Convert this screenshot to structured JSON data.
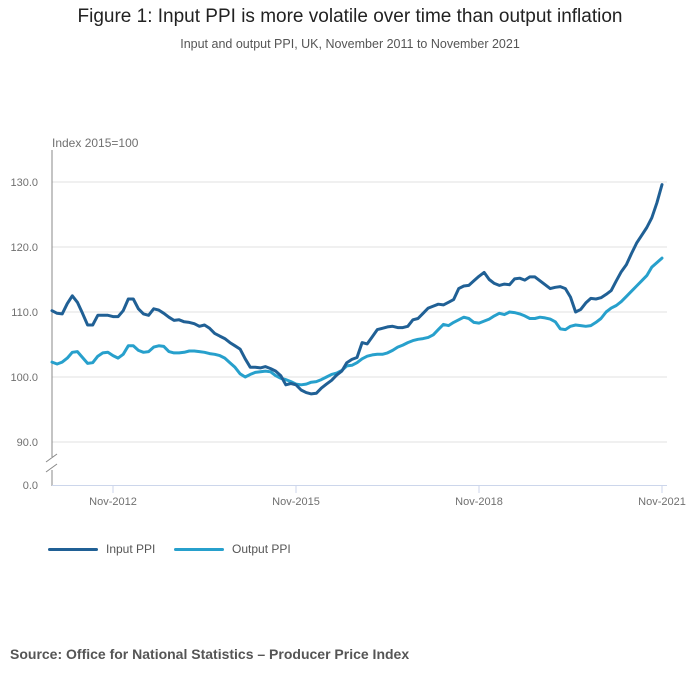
{
  "title": "Figure 1: Input PPI is more volatile over time than output inflation",
  "subtitle": "Input and output PPI, UK, November 2011 to November 2021",
  "source": "Source: Office for National Statistics – Producer Price Index",
  "chart_data": {
    "type": "line",
    "title": "Figure 1: Input PPI is more volatile over time than output inflation",
    "ylabel": "Index 2015=100",
    "xlabel": "",
    "x_start": "Nov-2011",
    "x_end": "Nov-2021",
    "x_frequency": "monthly",
    "x_ticks": [
      "Nov-2012",
      "Nov-2015",
      "Nov-2018",
      "Nov-2021"
    ],
    "y_ticks": [
      "0.0",
      "90.0",
      "100.0",
      "110.0",
      "120.0",
      "130.0"
    ],
    "ylim": [
      85,
      135
    ],
    "axis_break": "between 0.0 and 90.0",
    "grid": true,
    "legend": "bottom-left",
    "series": [
      {
        "name": "Input PPI",
        "color": "#206095",
        "values": [
          110.2,
          109.8,
          109.7,
          111.3,
          112.5,
          111.5,
          109.8,
          108.0,
          108.0,
          109.5,
          109.5,
          109.5,
          109.3,
          109.3,
          110.2,
          112.0,
          112.0,
          110.5,
          109.7,
          109.5,
          110.5,
          110.3,
          109.8,
          109.2,
          108.7,
          108.8,
          108.5,
          108.4,
          108.2,
          107.8,
          108.0,
          107.5,
          106.7,
          106.3,
          105.9,
          105.3,
          104.8,
          104.3,
          102.8,
          101.5,
          101.5,
          101.4,
          101.6,
          101.3,
          100.9,
          100.2,
          98.8,
          99.0,
          98.8,
          98.0,
          97.6,
          97.4,
          97.5,
          98.3,
          98.9,
          99.5,
          100.3,
          100.9,
          102.2,
          102.7,
          103.0,
          105.3,
          105.1,
          106.2,
          107.3,
          107.5,
          107.7,
          107.8,
          107.6,
          107.6,
          107.8,
          108.8,
          109.0,
          109.8,
          110.6,
          110.9,
          111.2,
          111.1,
          111.5,
          111.9,
          113.6,
          114.0,
          114.1,
          114.8,
          115.5,
          116.1,
          115.0,
          114.4,
          114.1,
          114.3,
          114.2,
          115.1,
          115.2,
          114.9,
          115.4,
          115.4,
          114.8,
          114.2,
          113.6,
          113.8,
          113.9,
          113.6,
          112.3,
          110.0,
          110.4,
          111.4,
          112.1,
          112.0,
          112.2,
          112.7,
          113.3,
          114.8,
          116.2,
          117.3,
          119.0,
          120.6,
          121.8,
          123.0,
          124.5,
          126.8,
          129.6
        ]
      },
      {
        "name": "Output PPI",
        "color": "#27a0cc",
        "values": [
          102.3,
          102.0,
          102.3,
          102.9,
          103.8,
          103.9,
          103.0,
          102.1,
          102.2,
          103.2,
          103.7,
          103.8,
          103.3,
          102.9,
          103.5,
          104.8,
          104.8,
          104.1,
          103.8,
          103.9,
          104.6,
          104.8,
          104.7,
          103.9,
          103.7,
          103.7,
          103.8,
          104.0,
          104.0,
          103.9,
          103.8,
          103.6,
          103.5,
          103.3,
          102.9,
          102.2,
          101.5,
          100.5,
          100.0,
          100.4,
          100.7,
          100.8,
          100.9,
          100.8,
          100.2,
          99.8,
          99.6,
          99.3,
          98.9,
          98.8,
          98.9,
          99.2,
          99.3,
          99.6,
          100.0,
          100.4,
          100.6,
          101.0,
          101.7,
          101.8,
          102.2,
          102.8,
          103.2,
          103.4,
          103.5,
          103.5,
          103.7,
          104.1,
          104.6,
          104.9,
          105.3,
          105.6,
          105.8,
          105.9,
          106.1,
          106.5,
          107.3,
          108.1,
          107.9,
          108.4,
          108.8,
          109.2,
          109.0,
          108.4,
          108.3,
          108.6,
          108.9,
          109.4,
          109.8,
          109.6,
          110.0,
          109.9,
          109.7,
          109.4,
          109.0,
          109.0,
          109.2,
          109.1,
          108.9,
          108.5,
          107.4,
          107.3,
          107.8,
          108.0,
          107.9,
          107.8,
          107.9,
          108.4,
          109.0,
          110.0,
          110.6,
          111.0,
          111.6,
          112.4,
          113.2,
          114.0,
          114.8,
          115.6,
          116.9,
          117.6,
          118.3
        ]
      }
    ]
  }
}
